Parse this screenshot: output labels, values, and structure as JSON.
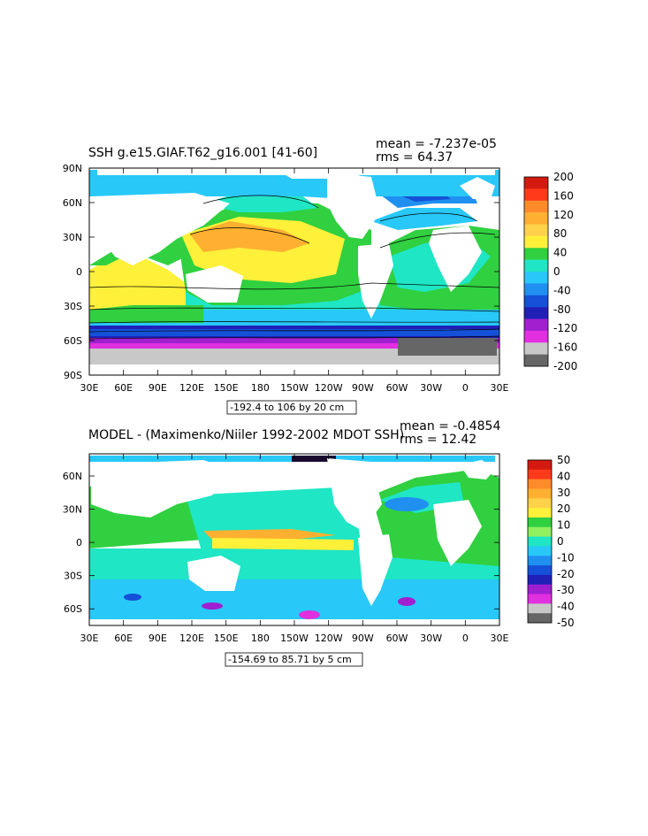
{
  "chart_data": [
    {
      "type": "heatmap",
      "title": "SSH g.e15.GIAF.T62_g16.001 [41-60]",
      "stats": {
        "mean": "mean = -7.237e-05",
        "rms": "rms = 64.37"
      },
      "x_ticks": [
        "30E",
        "60E",
        "90E",
        "120E",
        "150E",
        "180",
        "150W",
        "120W",
        "90W",
        "60W",
        "30W",
        "0",
        "30E"
      ],
      "y_ticks": [
        "90N",
        "60N",
        "30N",
        "0",
        "30S",
        "60S",
        "90S"
      ],
      "ylim": [
        -90,
        90
      ],
      "xlim": [
        30,
        390
      ],
      "colorbar": {
        "labels": [
          "200",
          "160",
          "120",
          "80",
          "40",
          "0",
          "-40",
          "-80",
          "-120",
          "-160",
          "-200"
        ],
        "colors": [
          "#d41a10",
          "#ff3a1a",
          "#ff8a2a",
          "#ffb030",
          "#ffd24a",
          "#fff03a",
          "#30d040",
          "#1fe6c4",
          "#28c8f8",
          "#2090f0",
          "#1550d8",
          "#2020b8",
          "#a020d0",
          "#e030e0",
          "#c8c8c8",
          "#666666"
        ]
      },
      "contour_info": "-192.4 to 106 by 20 cm"
    },
    {
      "type": "heatmap",
      "title": "MODEL - (Maximenko/Niiler 1992-2002 MDOT SSH)",
      "stats": {
        "mean": "mean = -0.4854",
        "rms": "rms = 12.42"
      },
      "x_ticks": [
        "30E",
        "60E",
        "90E",
        "120E",
        "150E",
        "180",
        "150W",
        "120W",
        "90W",
        "60W",
        "30W",
        "0",
        "30E"
      ],
      "y_ticks": [
        "60N",
        "30N",
        "0",
        "30S",
        "60S"
      ],
      "ylim": [
        -75,
        80
      ],
      "xlim": [
        30,
        390
      ],
      "colorbar": {
        "labels": [
          "50",
          "40",
          "30",
          "20",
          "10",
          "0",
          "-10",
          "-20",
          "-30",
          "-40",
          "-50"
        ],
        "colors": [
          "#d41a10",
          "#ff3a1a",
          "#ff8a2a",
          "#ffb030",
          "#ffd24a",
          "#fff03a",
          "#30d040",
          "#90f060",
          "#1fe6c4",
          "#28c8f8",
          "#2090f0",
          "#1550d8",
          "#2020b8",
          "#a020d0",
          "#e030e0",
          "#c8c8c8",
          "#666666"
        ]
      },
      "contour_info": "-154.69 to 85.71 by 5 cm"
    }
  ]
}
